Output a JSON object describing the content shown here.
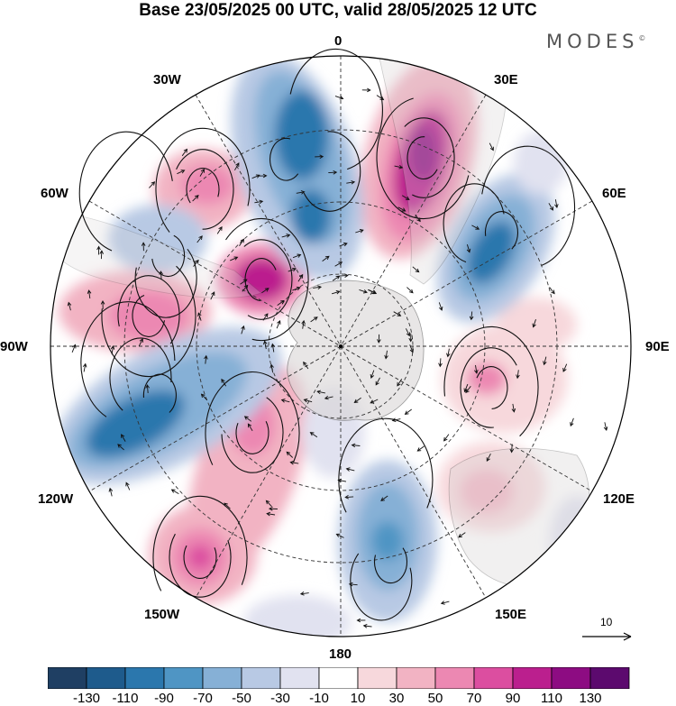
{
  "title": "Base 23/05/2025 00 UTC, valid 28/05/2025 12 UTC",
  "brand": "MODES",
  "brand_mark": "©",
  "longitude_labels": {
    "top": "0",
    "top_right": "30E",
    "right_upper": "60E",
    "right": "90E",
    "right_lower": "120E",
    "bottom_right": "150E",
    "bottom": "180",
    "bottom_left": "150W",
    "left_lower": "120W",
    "left": "90W",
    "left_upper": "60W",
    "top_left": "30W"
  },
  "vector_scale": "10",
  "colorbar": {
    "colors": [
      "#1f3f63",
      "#1e5b8c",
      "#2b77ad",
      "#4f95c4",
      "#86b0d6",
      "#b8c9e4",
      "#e1e2f0",
      "#ffffff",
      "#f7d8dc",
      "#f2b3c3",
      "#ec88b2",
      "#dc4ea0",
      "#bb1f8e",
      "#8d0c82",
      "#5c0a6e"
    ],
    "tick_labels": [
      "-130",
      "-110",
      "-90",
      "-70",
      "-50",
      "-30",
      "-10",
      "10",
      "30",
      "50",
      "70",
      "90",
      "110",
      "130"
    ]
  },
  "colors": {
    "land": "#d9d6d6",
    "coast": "#555555"
  }
}
